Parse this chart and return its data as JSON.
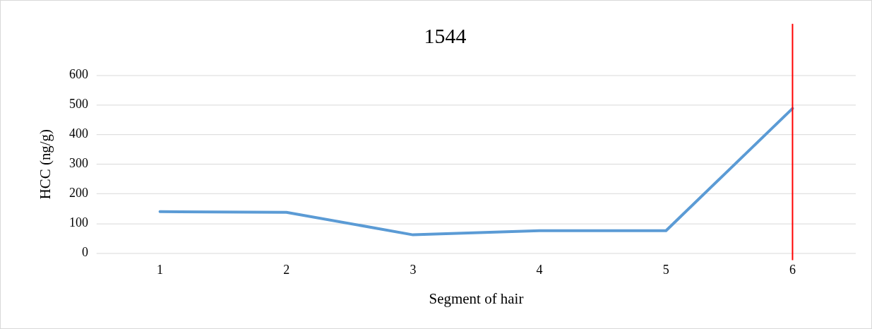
{
  "chart_data": {
    "type": "line",
    "title": "1544",
    "xlabel": "Segment of hair",
    "ylabel": "HCC (ng/g)",
    "categories": [
      "1",
      "2",
      "3",
      "4",
      "5",
      "6"
    ],
    "series": [
      {
        "color": "#5b9bd5",
        "values": [
          140,
          138,
          62,
          76,
          76,
          488
        ]
      }
    ],
    "ylim": [
      0,
      600
    ],
    "yticks": [
      0,
      100,
      200,
      300,
      400,
      500,
      600
    ],
    "grid": "y",
    "legend": false,
    "marker": "none",
    "ref_lines": [
      {
        "axis": "x",
        "value": "6",
        "color": "#ff0000"
      }
    ]
  }
}
